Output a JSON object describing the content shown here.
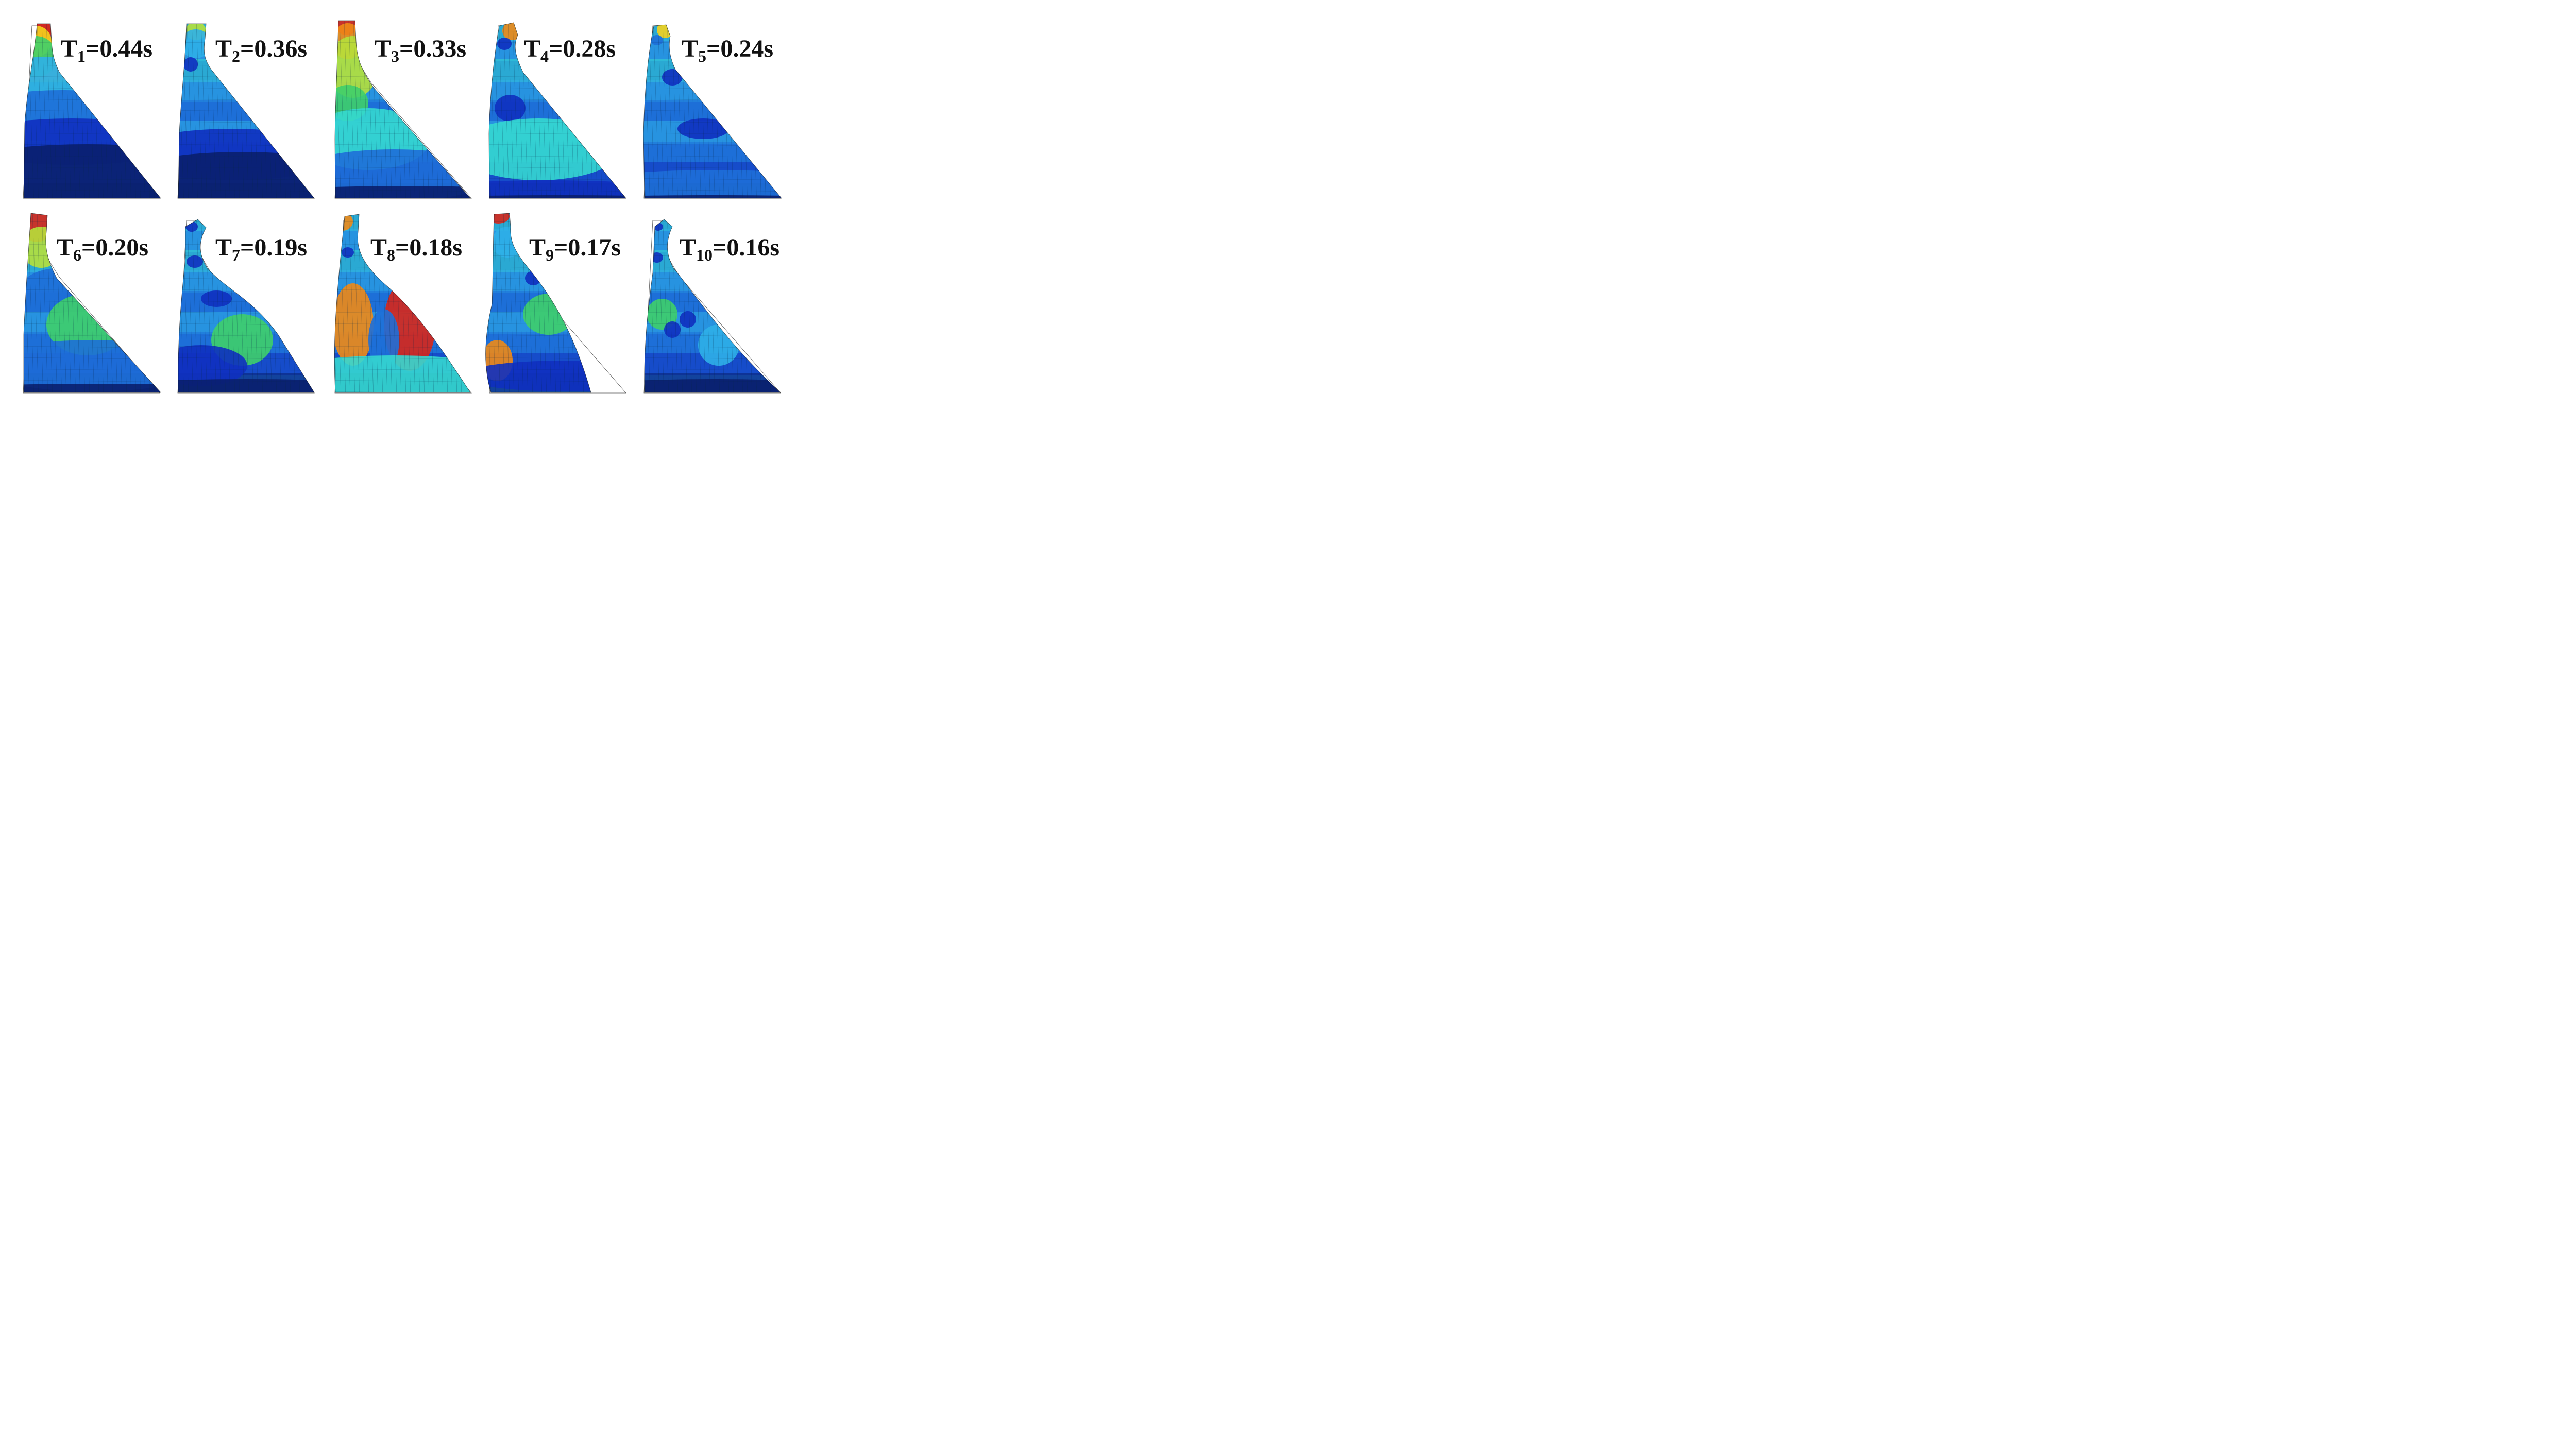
{
  "figure": {
    "panels": [
      {
        "id": 1,
        "T": "T",
        "sub": "1",
        "val": "=0.44s",
        "period_s": 0.44
      },
      {
        "id": 2,
        "T": "T",
        "sub": "2",
        "val": "=0.36s",
        "period_s": 0.36
      },
      {
        "id": 3,
        "T": "T",
        "sub": "3",
        "val": "=0.33s",
        "period_s": 0.33
      },
      {
        "id": 4,
        "T": "T",
        "sub": "4",
        "val": "=0.28s",
        "period_s": 0.28
      },
      {
        "id": 5,
        "T": "T",
        "sub": "5",
        "val": "=0.24s",
        "period_s": 0.24
      },
      {
        "id": 6,
        "T": "T",
        "sub": "6",
        "val": "=0.20s",
        "period_s": 0.2
      },
      {
        "id": 7,
        "T": "T",
        "sub": "7",
        "val": "=0.19s",
        "period_s": 0.19
      },
      {
        "id": 8,
        "T": "T",
        "sub": "8",
        "val": "=0.18s",
        "period_s": 0.18
      },
      {
        "id": 9,
        "T": "T",
        "sub": "9",
        "val": "=0.17s",
        "period_s": 0.17
      },
      {
        "id": 10,
        "T": "T",
        "sub": "10",
        "val": "=0.16s",
        "period_s": 0.16
      }
    ],
    "colors": {
      "ramp": [
        "#0a1f6e",
        "#1030c0",
        "#1e6fd8",
        "#2fb0e8",
        "#35d8d0",
        "#3fcf6a",
        "#b6e03a",
        "#f4d21c",
        "#f08a16",
        "#d8261a"
      ],
      "outline": "#555555",
      "label": "#111111"
    }
  }
}
